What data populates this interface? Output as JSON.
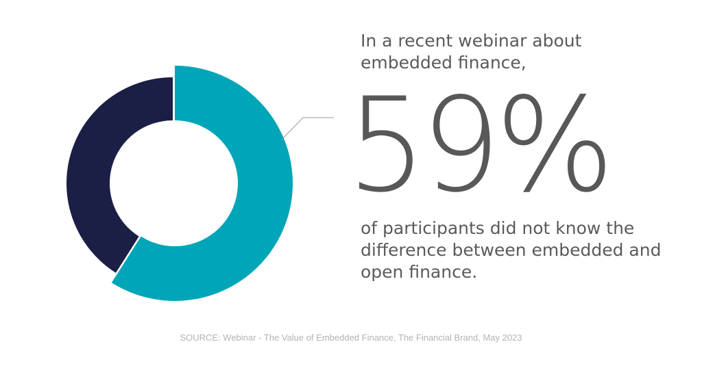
{
  "chart_data": {
    "type": "pie",
    "style": "donut",
    "values": [
      59,
      41
    ],
    "colors": [
      "#00a5b8",
      "#1b1f45"
    ]
  },
  "headline": {
    "intro": "In a recent webinar about embedded finance,",
    "stat": "59%",
    "description": "of participants did not know the difference between embedded and open finance."
  },
  "source": "SOURCE: Webinar - The Value of Embedded Finance, The Financial Brand, May 2023",
  "colors": {
    "accent": "#00a5b8",
    "dark": "#1b1f45",
    "text": "#5a5a5a",
    "source_text": "#b3b3b3"
  }
}
